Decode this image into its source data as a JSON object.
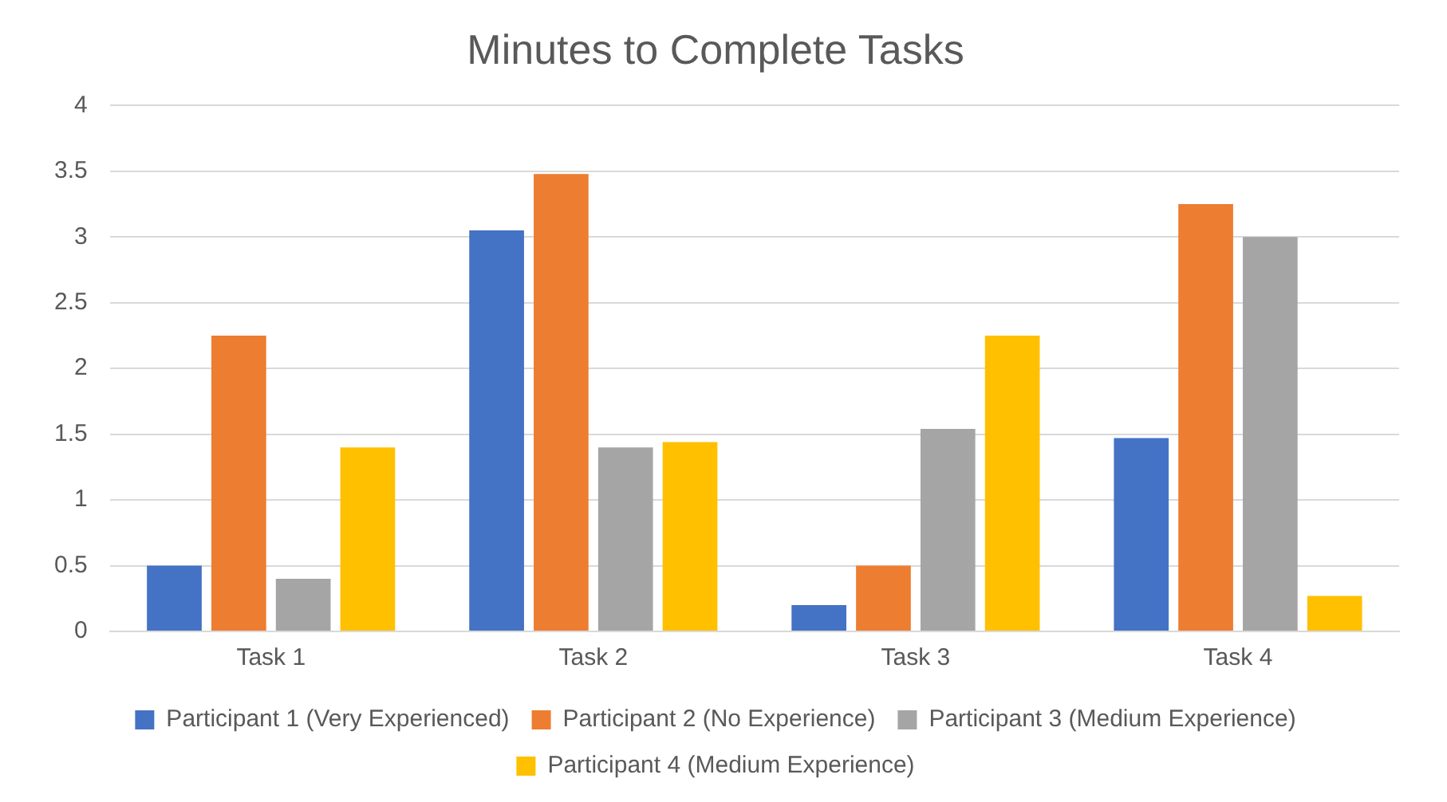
{
  "chart_data": {
    "type": "bar",
    "title": "Minutes to Complete Tasks",
    "categories": [
      "Task 1",
      "Task 2",
      "Task 3",
      "Task 4"
    ],
    "series": [
      {
        "name": "Participant 1 (Very Experienced)",
        "color": "#4472c4",
        "values": [
          0.5,
          3.05,
          0.2,
          1.47
        ]
      },
      {
        "name": "Participant 2 (No Experience)",
        "color": "#ed7d31",
        "values": [
          2.25,
          3.48,
          0.5,
          3.25
        ]
      },
      {
        "name": "Participant 3 (Medium Experience)",
        "color": "#a5a5a5",
        "values": [
          0.4,
          1.4,
          1.54,
          3.0
        ]
      },
      {
        "name": "Participant 4 (Medium Experience)",
        "color": "#ffc000",
        "values": [
          1.4,
          1.44,
          2.25,
          0.27
        ]
      }
    ],
    "ylim": [
      0,
      4
    ],
    "yticks": [
      0,
      0.5,
      1,
      1.5,
      2,
      2.5,
      3,
      3.5,
      4
    ],
    "grid": "y",
    "legend": "bottom"
  }
}
